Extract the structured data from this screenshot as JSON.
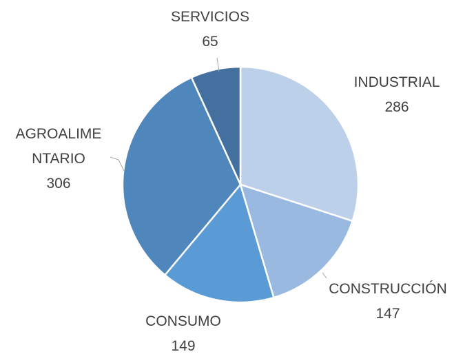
{
  "chart_data": {
    "type": "pie",
    "categories": [
      "INDUSTRIAL",
      "CONSTRUCCIÓN",
      "CONSUMO",
      "AGROALIMENTARIO",
      "SERVICIOS"
    ],
    "values": [
      286,
      147,
      149,
      306,
      65
    ],
    "colors": [
      "#bdd0ea",
      "#9ab9e0",
      "#5b9bd5",
      "#4f87bd",
      "#44709f"
    ]
  }
}
